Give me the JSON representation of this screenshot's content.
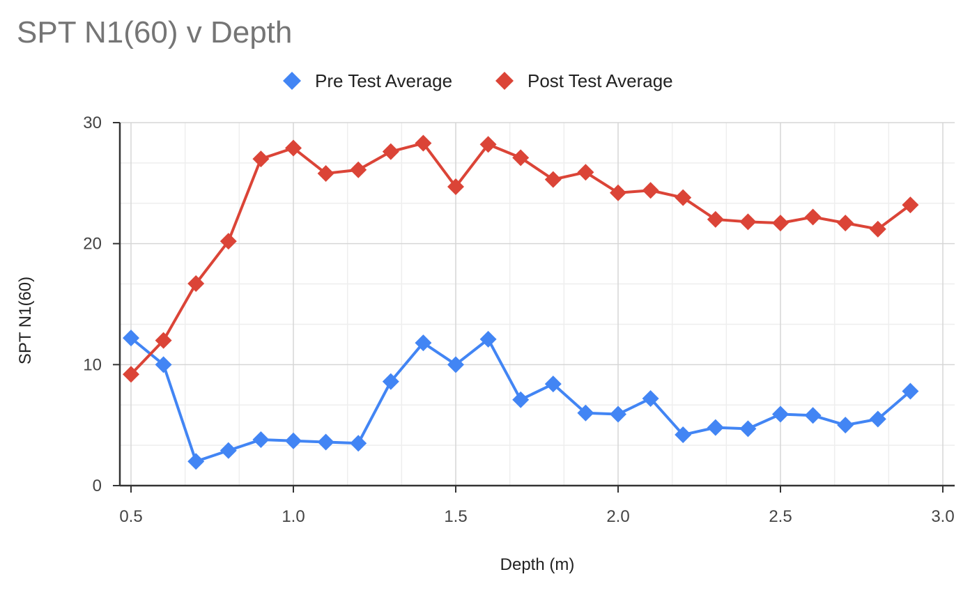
{
  "chart_data": {
    "type": "line",
    "title": "SPT N1(60) v Depth",
    "xlabel": "Depth (m)",
    "ylabel": "SPT N1(60)",
    "xlim": [
      0.45,
      3.0
    ],
    "ylim": [
      0,
      30
    ],
    "x_ticks": [
      0.5,
      1.0,
      1.5,
      2.0,
      2.5,
      3.0
    ],
    "x_tick_labels": [
      "0.5",
      "1.0",
      "1.5",
      "2.0",
      "2.5",
      "3.0"
    ],
    "y_ticks": [
      0,
      10,
      20,
      30
    ],
    "y_tick_labels": [
      "0",
      "10",
      "20",
      "30"
    ],
    "grid": true,
    "legend_position": "top",
    "marker": "diamond",
    "x": [
      0.5,
      0.6,
      0.7,
      0.8,
      0.9,
      1.0,
      1.1,
      1.2,
      1.3,
      1.4,
      1.5,
      1.6,
      1.7,
      1.8,
      1.9,
      2.0,
      2.1,
      2.2,
      2.3,
      2.4,
      2.5,
      2.6,
      2.7,
      2.8,
      2.9
    ],
    "series": [
      {
        "name": "Pre Test Average",
        "color": "#4285f4",
        "values": [
          12.2,
          10.0,
          2.0,
          2.9,
          3.8,
          3.7,
          3.6,
          3.5,
          8.6,
          11.8,
          10.0,
          12.1,
          7.1,
          8.4,
          6.0,
          5.9,
          7.2,
          4.2,
          4.8,
          4.7,
          5.9,
          5.8,
          5.0,
          5.5,
          7.8
        ]
      },
      {
        "name": "Post Test Average",
        "color": "#db4437",
        "values": [
          9.2,
          12.0,
          16.7,
          20.2,
          27.0,
          27.9,
          25.8,
          26.1,
          27.6,
          28.3,
          24.7,
          28.2,
          27.1,
          25.3,
          25.9,
          24.2,
          24.4,
          23.8,
          22.0,
          21.8,
          21.7,
          22.2,
          21.7,
          21.2,
          23.2
        ]
      }
    ]
  }
}
